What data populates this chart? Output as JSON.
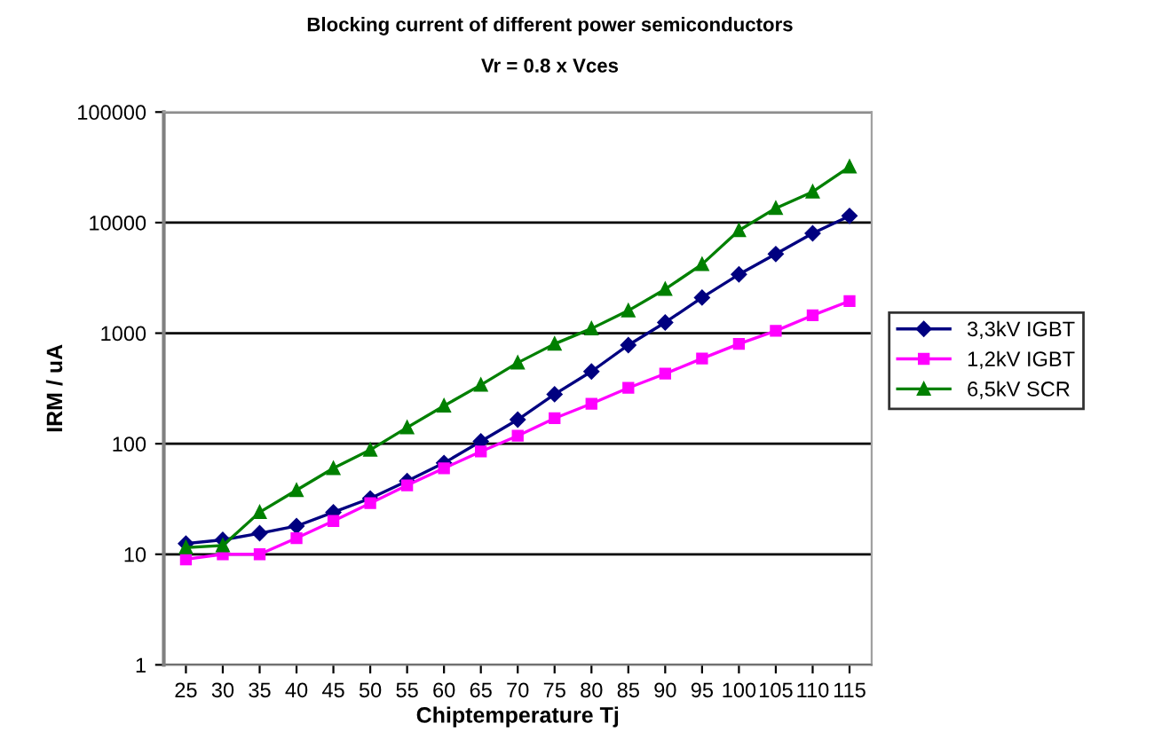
{
  "chart_data": {
    "type": "line",
    "title": "Blocking current of different power semiconductors",
    "subtitle": "Vr = 0.8 x Vces",
    "xlabel": "Chiptemperature Tj",
    "ylabel": "IRM / uA",
    "categories": [
      "25",
      "30",
      "35",
      "40",
      "45",
      "50",
      "55",
      "60",
      "65",
      "70",
      "75",
      "80",
      "85",
      "90",
      "95",
      "100",
      "105",
      "110",
      "115"
    ],
    "series": [
      {
        "name": "3,3kV IGBT",
        "color": "#000080",
        "marker": "diamond",
        "values": [
          12.5,
          13.5,
          15.5,
          18,
          24,
          32,
          46,
          67,
          105,
          165,
          280,
          450,
          780,
          1250,
          2100,
          3400,
          5200,
          8000,
          11500
        ]
      },
      {
        "name": "1,2kV IGBT",
        "color": "#ff00ff",
        "marker": "square",
        "values": [
          9,
          10,
          10,
          14,
          20,
          29,
          42,
          60,
          85,
          118,
          170,
          230,
          320,
          430,
          590,
          800,
          1050,
          1450,
          1950
        ]
      },
      {
        "name": "6,5kV SCR",
        "color": "#008000",
        "marker": "triangle",
        "values": [
          11.5,
          12,
          24,
          38,
          60,
          88,
          140,
          220,
          340,
          540,
          800,
          1100,
          1600,
          2500,
          4200,
          8500,
          13500,
          19000,
          32000
        ]
      }
    ],
    "log": "y",
    "ylim": [
      1,
      100000
    ],
    "yticks": [
      1,
      10,
      100,
      1000,
      10000,
      100000
    ],
    "grid": "y",
    "legend": "right"
  }
}
